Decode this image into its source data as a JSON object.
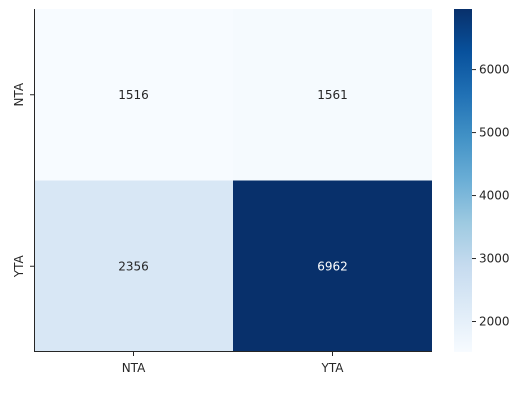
{
  "chart_data": {
    "type": "heatmap",
    "title": "",
    "xlabel": "",
    "ylabel": "",
    "x_categories": [
      "NTA",
      "YTA"
    ],
    "y_categories": [
      "NTA",
      "YTA"
    ],
    "values": [
      [
        1516,
        1561
      ],
      [
        2356,
        6962
      ]
    ],
    "colormap": "Blues",
    "color_range": [
      1516,
      6962
    ],
    "colorbar_ticks": [
      2000,
      3000,
      4000,
      5000,
      6000
    ],
    "colorbar_tick_labels": [
      "2000",
      "3000",
      "4000",
      "5000",
      "6000"
    ]
  }
}
